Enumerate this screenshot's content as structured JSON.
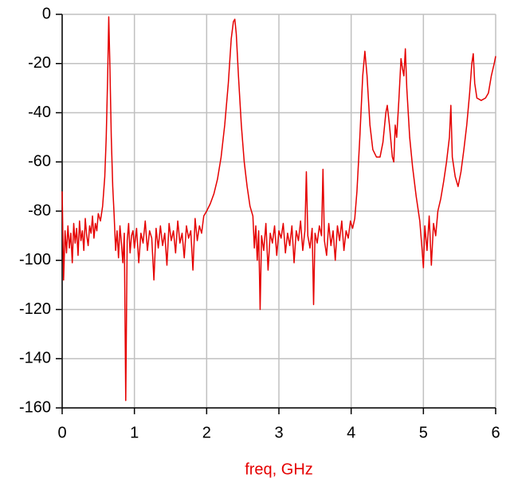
{
  "chart_data": {
    "type": "line",
    "x_label": "freq, GHz",
    "x": [
      0,
      0.02,
      0.04,
      0.06,
      0.08,
      0.1,
      0.12,
      0.14,
      0.16,
      0.18,
      0.2,
      0.22,
      0.24,
      0.26,
      0.28,
      0.3,
      0.32,
      0.34,
      0.36,
      0.38,
      0.4,
      0.42,
      0.44,
      0.46,
      0.48,
      0.5,
      0.53,
      0.56,
      0.59,
      0.61,
      0.63,
      0.645,
      0.66,
      0.68,
      0.7,
      0.72,
      0.74,
      0.76,
      0.78,
      0.8,
      0.82,
      0.84,
      0.86,
      0.88,
      0.9,
      0.92,
      0.94,
      0.96,
      0.98,
      1.0,
      1.03,
      1.06,
      1.09,
      1.12,
      1.15,
      1.18,
      1.21,
      1.24,
      1.27,
      1.3,
      1.33,
      1.36,
      1.39,
      1.42,
      1.45,
      1.48,
      1.51,
      1.54,
      1.57,
      1.6,
      1.63,
      1.66,
      1.69,
      1.72,
      1.75,
      1.78,
      1.81,
      1.84,
      1.87,
      1.9,
      1.93,
      1.96,
      2.0,
      2.05,
      2.1,
      2.15,
      2.2,
      2.25,
      2.3,
      2.34,
      2.37,
      2.39,
      2.41,
      2.44,
      2.48,
      2.52,
      2.56,
      2.6,
      2.64,
      2.66,
      2.68,
      2.7,
      2.72,
      2.74,
      2.76,
      2.79,
      2.82,
      2.85,
      2.88,
      2.91,
      2.94,
      2.97,
      3.0,
      3.03,
      3.06,
      3.09,
      3.12,
      3.15,
      3.18,
      3.21,
      3.24,
      3.27,
      3.3,
      3.33,
      3.36,
      3.38,
      3.4,
      3.43,
      3.46,
      3.48,
      3.5,
      3.53,
      3.56,
      3.59,
      3.61,
      3.63,
      3.66,
      3.69,
      3.72,
      3.75,
      3.78,
      3.81,
      3.84,
      3.87,
      3.9,
      3.93,
      3.96,
      3.99,
      4.02,
      4.05,
      4.08,
      4.12,
      4.16,
      4.19,
      4.22,
      4.26,
      4.3,
      4.35,
      4.4,
      4.44,
      4.48,
      4.5,
      4.53,
      4.57,
      4.59,
      4.61,
      4.63,
      4.66,
      4.69,
      4.71,
      4.73,
      4.75,
      4.77,
      4.81,
      4.85,
      4.9,
      4.95,
      4.98,
      5.0,
      5.02,
      5.05,
      5.08,
      5.11,
      5.14,
      5.17,
      5.2,
      5.24,
      5.28,
      5.32,
      5.36,
      5.38,
      5.4,
      5.44,
      5.48,
      5.52,
      5.56,
      5.6,
      5.64,
      5.67,
      5.69,
      5.71,
      5.74,
      5.8,
      5.86,
      5.9,
      5.94,
      5.98,
      6.0
    ],
    "values": [
      -72,
      -108,
      -88,
      -97,
      -86,
      -95,
      -89,
      -101,
      -85,
      -93,
      -87,
      -98,
      -84,
      -92,
      -88,
      -96,
      -83,
      -90,
      -94,
      -86,
      -89,
      -82,
      -91,
      -85,
      -88,
      -81,
      -84,
      -78,
      -66,
      -50,
      -25,
      -1,
      -20,
      -50,
      -70,
      -82,
      -96,
      -88,
      -99,
      -86,
      -93,
      -101,
      -89,
      -157,
      -92,
      -85,
      -97,
      -90,
      -88,
      -95,
      -87,
      -101,
      -89,
      -93,
      -84,
      -96,
      -88,
      -91,
      -108,
      -87,
      -95,
      -86,
      -94,
      -89,
      -102,
      -85,
      -92,
      -88,
      -97,
      -84,
      -93,
      -89,
      -99,
      -86,
      -91,
      -88,
      -104,
      -83,
      -92,
      -86,
      -89,
      -82,
      -80,
      -77,
      -73,
      -67,
      -58,
      -45,
      -28,
      -10,
      -3,
      -2,
      -8,
      -25,
      -45,
      -60,
      -70,
      -78,
      -82,
      -95,
      -86,
      -100,
      -88,
      -120,
      -90,
      -96,
      -85,
      -104,
      -89,
      -93,
      -86,
      -98,
      -88,
      -91,
      -85,
      -97,
      -89,
      -94,
      -86,
      -101,
      -88,
      -92,
      -84,
      -96,
      -88,
      -64,
      -90,
      -95,
      -87,
      -118,
      -89,
      -93,
      -86,
      -90,
      -63,
      -92,
      -98,
      -85,
      -94,
      -88,
      -100,
      -86,
      -92,
      -84,
      -96,
      -88,
      -91,
      -84,
      -87,
      -83,
      -72,
      -50,
      -25,
      -15,
      -25,
      -45,
      -55,
      -58,
      -58,
      -52,
      -40,
      -37,
      -45,
      -58,
      -60,
      -45,
      -50,
      -35,
      -18,
      -22,
      -25,
      -14,
      -30,
      -50,
      -62,
      -74,
      -84,
      -95,
      -103,
      -86,
      -96,
      -82,
      -102,
      -85,
      -90,
      -80,
      -75,
      -68,
      -60,
      -50,
      -37,
      -58,
      -66,
      -70,
      -64,
      -55,
      -45,
      -32,
      -20,
      -16,
      -28,
      -34,
      -35,
      -34,
      -32,
      -25,
      -20,
      -17
    ],
    "color": "#e50000",
    "xlim": [
      0,
      6
    ],
    "xticks": [
      0,
      1,
      2,
      3,
      4,
      5,
      6
    ],
    "ylim": [
      -160,
      0
    ],
    "yticks": [
      0,
      -20,
      -40,
      -60,
      -80,
      -100,
      -120,
      -140,
      -160
    ],
    "grid": true
  }
}
